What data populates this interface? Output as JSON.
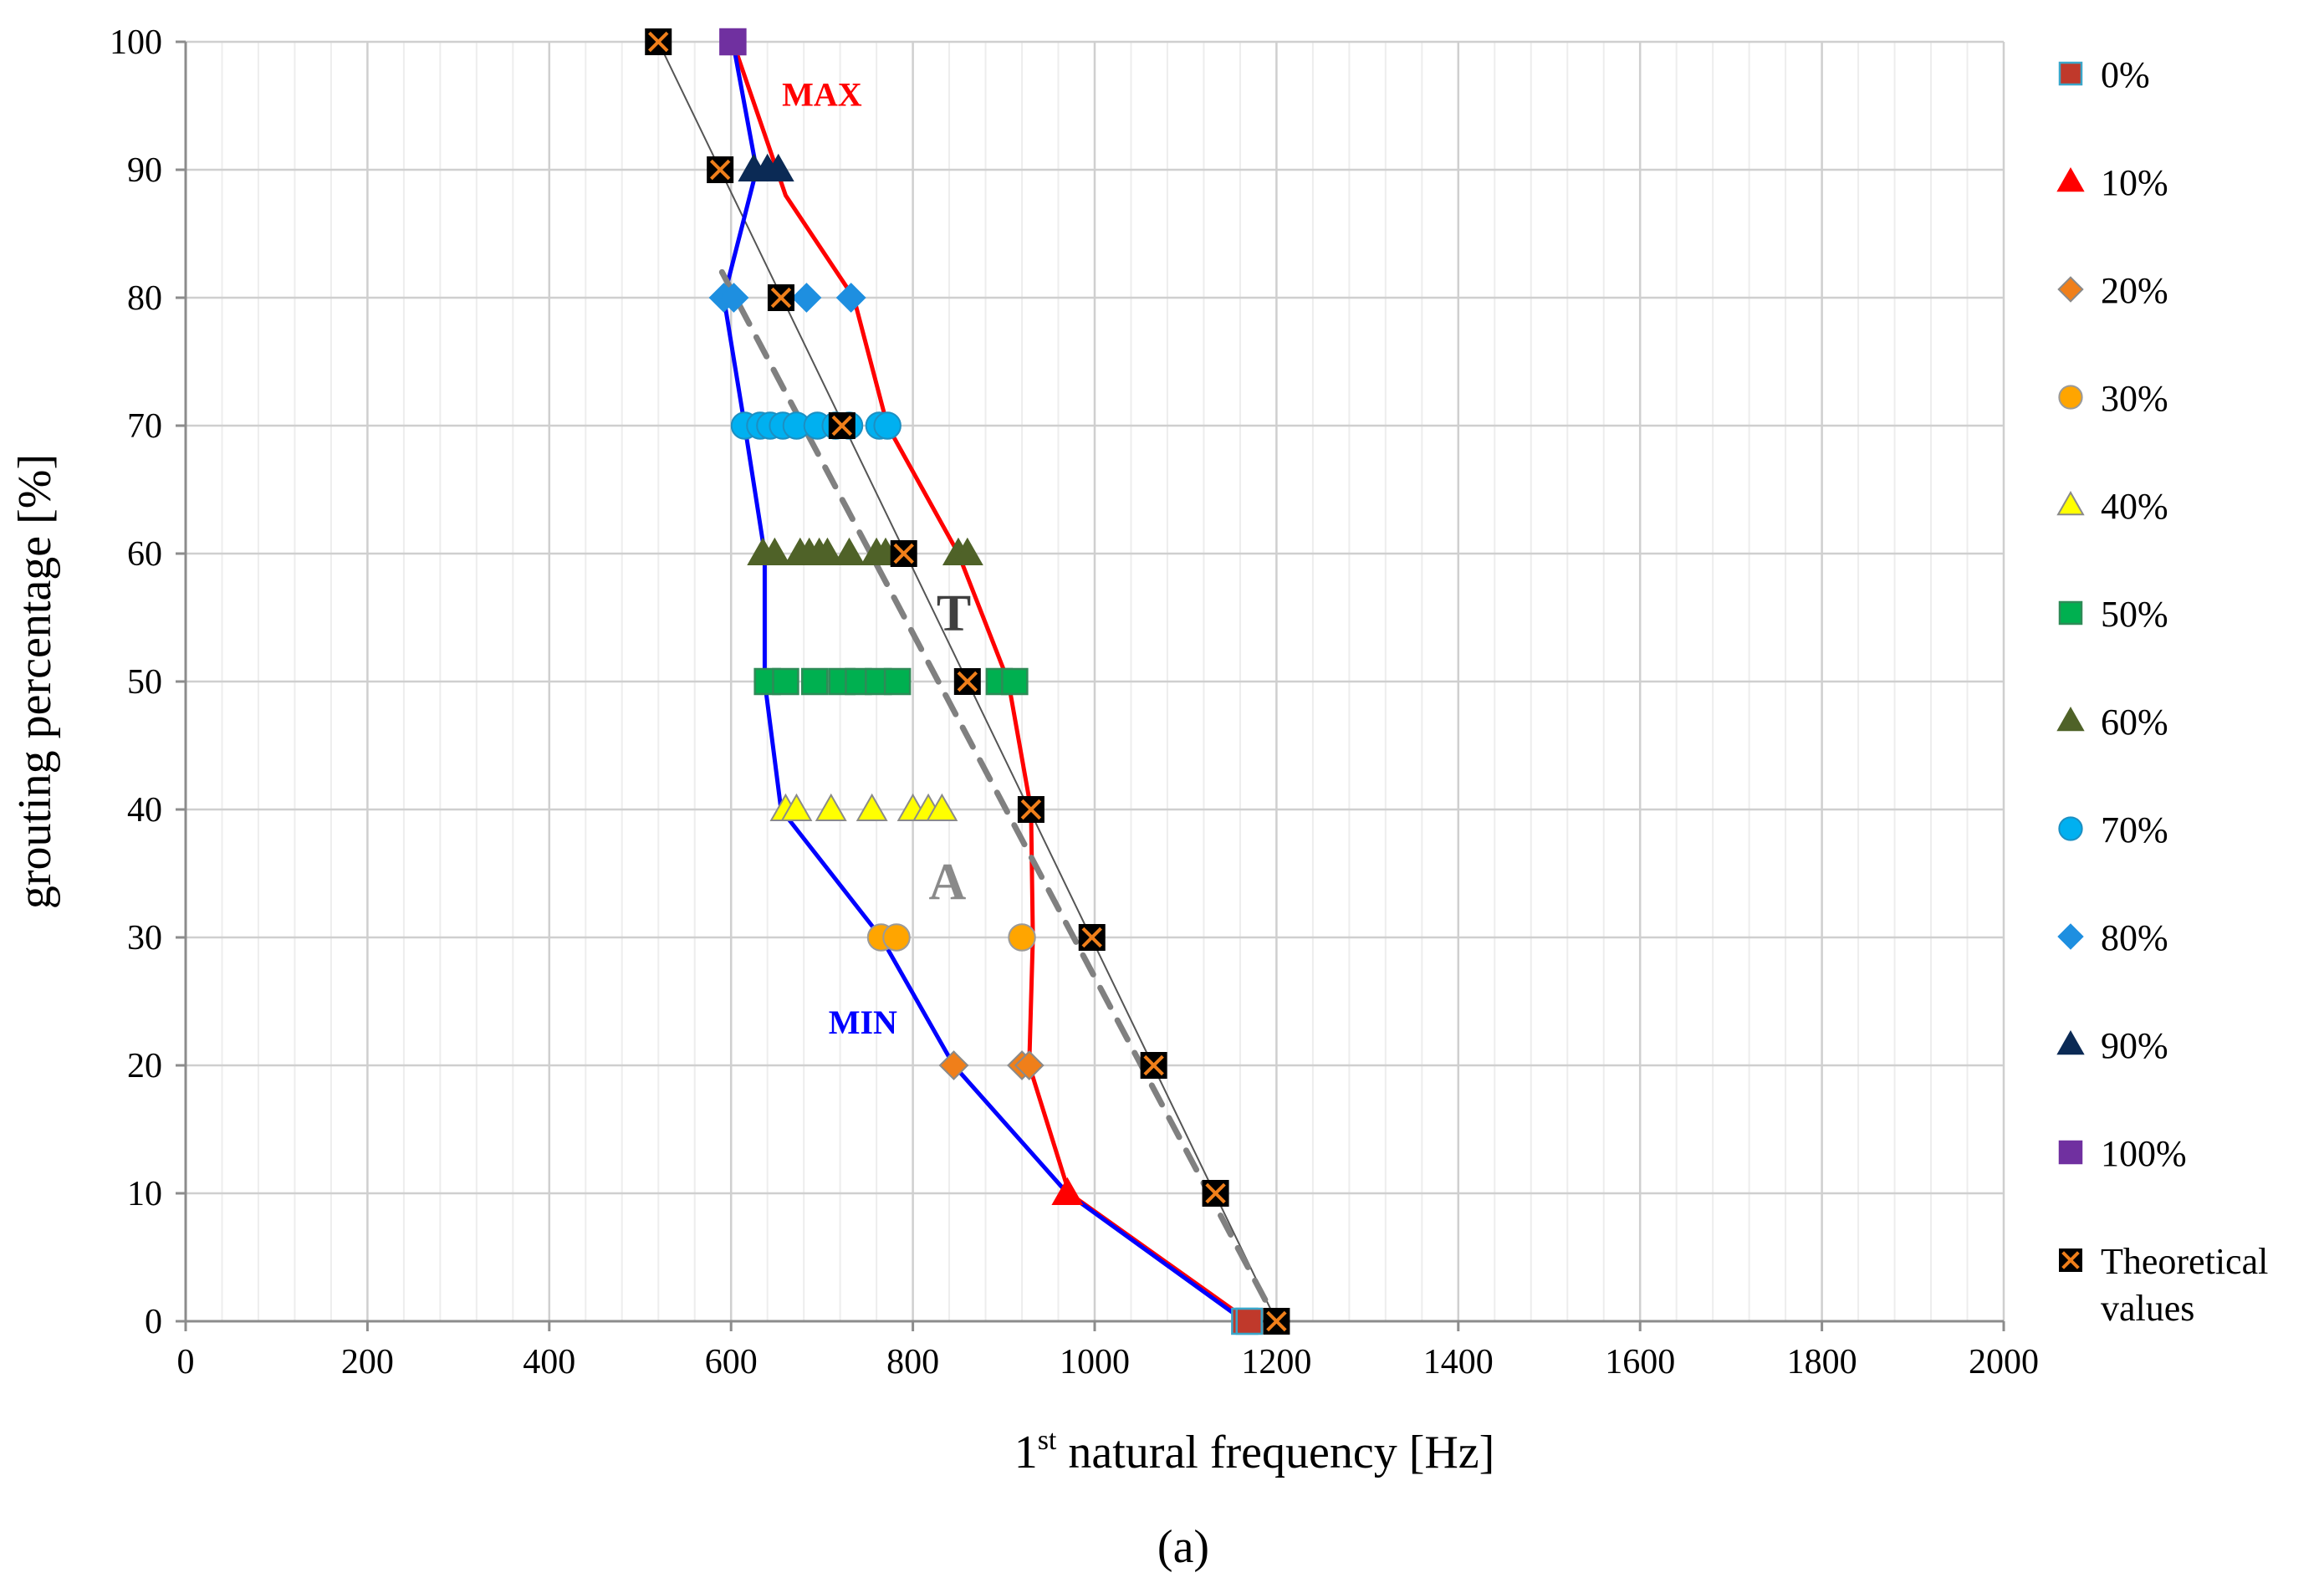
{
  "chart_data": {
    "type": "scatter",
    "subfigure_label": "(a)",
    "xlabel_sup": "st",
    "xlabel_num": "1",
    "xlabel": "natural frequency [Hz]",
    "ylabel": "grouting percentage [%]",
    "xlim": [
      0,
      2000
    ],
    "ylim": [
      0,
      100
    ],
    "xticks": [
      0,
      200,
      400,
      600,
      800,
      1000,
      1200,
      1400,
      1600,
      1800,
      2000
    ],
    "yticks": [
      0,
      10,
      20,
      30,
      40,
      50,
      60,
      70,
      80,
      90,
      100
    ],
    "grid": true,
    "legend_position": "right",
    "series": [
      {
        "name": "0%",
        "marker": "square",
        "color": "#c0392b",
        "edge": "#3aa6c9",
        "points": [
          [
            1165,
            0
          ],
          [
            1170,
            0
          ]
        ]
      },
      {
        "name": "10%",
        "marker": "triangle",
        "color": "#ff0000",
        "edge": "#ff0000",
        "points": [
          [
            970,
            10
          ]
        ]
      },
      {
        "name": "20%",
        "marker": "diamond",
        "color": "#f07f1a",
        "edge": "#8a8a8a",
        "points": [
          [
            845,
            20
          ],
          [
            920,
            20
          ],
          [
            928,
            20
          ]
        ]
      },
      {
        "name": "30%",
        "marker": "circle",
        "color": "#ffa500",
        "edge": "#9a9a9a",
        "points": [
          [
            765,
            30
          ],
          [
            782,
            30
          ],
          [
            920,
            30
          ]
        ]
      },
      {
        "name": "40%",
        "marker": "triangle",
        "color": "#ffff00",
        "edge": "#8a8a8a",
        "points": [
          [
            660,
            40
          ],
          [
            672,
            40
          ],
          [
            710,
            40
          ],
          [
            755,
            40
          ],
          [
            800,
            40
          ],
          [
            817,
            40
          ],
          [
            832,
            40
          ]
        ]
      },
      {
        "name": "50%",
        "marker": "square",
        "color": "#00b050",
        "edge": "#2e8b57",
        "points": [
          [
            640,
            50
          ],
          [
            660,
            50
          ],
          [
            692,
            50
          ],
          [
            722,
            50
          ],
          [
            740,
            50
          ],
          [
            762,
            50
          ],
          [
            783,
            50
          ],
          [
            895,
            50
          ],
          [
            912,
            50
          ]
        ]
      },
      {
        "name": "60%",
        "marker": "triangle",
        "color": "#4f6228",
        "edge": "#4f6228",
        "points": [
          [
            635,
            60
          ],
          [
            648,
            60
          ],
          [
            676,
            60
          ],
          [
            686,
            60
          ],
          [
            697,
            60
          ],
          [
            706,
            60
          ],
          [
            730,
            60
          ],
          [
            760,
            60
          ],
          [
            770,
            60
          ],
          [
            850,
            60
          ],
          [
            860,
            60
          ]
        ]
      },
      {
        "name": "70%",
        "marker": "circle",
        "color": "#00b0f0",
        "edge": "#1c8fc2",
        "points": [
          [
            615,
            70
          ],
          [
            632,
            70
          ],
          [
            643,
            70
          ],
          [
            657,
            70
          ],
          [
            672,
            70
          ],
          [
            695,
            70
          ],
          [
            715,
            70
          ],
          [
            730,
            70
          ],
          [
            763,
            70
          ],
          [
            772,
            70
          ]
        ]
      },
      {
        "name": "80%",
        "marker": "diamond",
        "color": "#1e8fe0",
        "edge": "#1e8fe0",
        "points": [
          [
            592,
            80
          ],
          [
            603,
            80
          ],
          [
            683,
            80
          ],
          [
            732,
            80
          ]
        ]
      },
      {
        "name": "90%",
        "marker": "triangle",
        "color": "#0b2a55",
        "edge": "#0b2a55",
        "points": [
          [
            625,
            90
          ],
          [
            640,
            90
          ],
          [
            652,
            90
          ]
        ]
      },
      {
        "name": "100%",
        "marker": "square",
        "color": "#7030a0",
        "edge": "#7030a0",
        "points": [
          [
            602,
            100
          ]
        ]
      },
      {
        "name": "Theoretical values",
        "marker": "square-x",
        "color": "#000000",
        "edge": "#f07f1a",
        "points": [
          [
            520,
            100
          ],
          [
            588,
            90
          ],
          [
            655,
            80
          ],
          [
            722,
            70
          ],
          [
            790,
            60
          ],
          [
            860,
            50
          ],
          [
            930,
            40
          ],
          [
            997,
            30
          ],
          [
            1065,
            20
          ],
          [
            1133,
            10
          ],
          [
            1200,
            0
          ]
        ]
      }
    ],
    "lines": [
      {
        "name": "T",
        "style": "solid",
        "color": "#555555",
        "points": [
          [
            520,
            100
          ],
          [
            1200,
            0
          ]
        ]
      },
      {
        "name": "MAX",
        "style": "solid",
        "color": "#ff0000",
        "points": [
          [
            602,
            100
          ],
          [
            660,
            88
          ],
          [
            735,
            80
          ],
          [
            772,
            70
          ],
          [
            850,
            60
          ],
          [
            905,
            50
          ],
          [
            930,
            40
          ],
          [
            932,
            30
          ],
          [
            928,
            20
          ],
          [
            972,
            10
          ],
          [
            1170,
            0
          ]
        ]
      },
      {
        "name": "MIN",
        "style": "solid",
        "color": "#0000ff",
        "points": [
          [
            602,
            100
          ],
          [
            628,
            90
          ],
          [
            592,
            80
          ],
          [
            615,
            70
          ],
          [
            637,
            60
          ],
          [
            637,
            50
          ],
          [
            655,
            40
          ],
          [
            765,
            30
          ],
          [
            845,
            20
          ],
          [
            970,
            10
          ],
          [
            1165,
            0
          ]
        ]
      },
      {
        "name": "A",
        "style": "dashed",
        "color": "#808080",
        "points": [
          [
            590,
            82
          ],
          [
            1200,
            0
          ]
        ]
      }
    ],
    "annotations": [
      {
        "text": "MAX",
        "x": 700,
        "y": 95,
        "color": "#ff0000",
        "size": "small"
      },
      {
        "text": "MIN",
        "x": 745,
        "y": 22.5,
        "color": "#0000ff",
        "size": "small"
      },
      {
        "text": "T",
        "x": 845,
        "y": 54,
        "color": "#404040",
        "size": "large"
      },
      {
        "text": "A",
        "x": 838,
        "y": 33,
        "color": "#8a8a8a",
        "size": "large"
      }
    ]
  }
}
